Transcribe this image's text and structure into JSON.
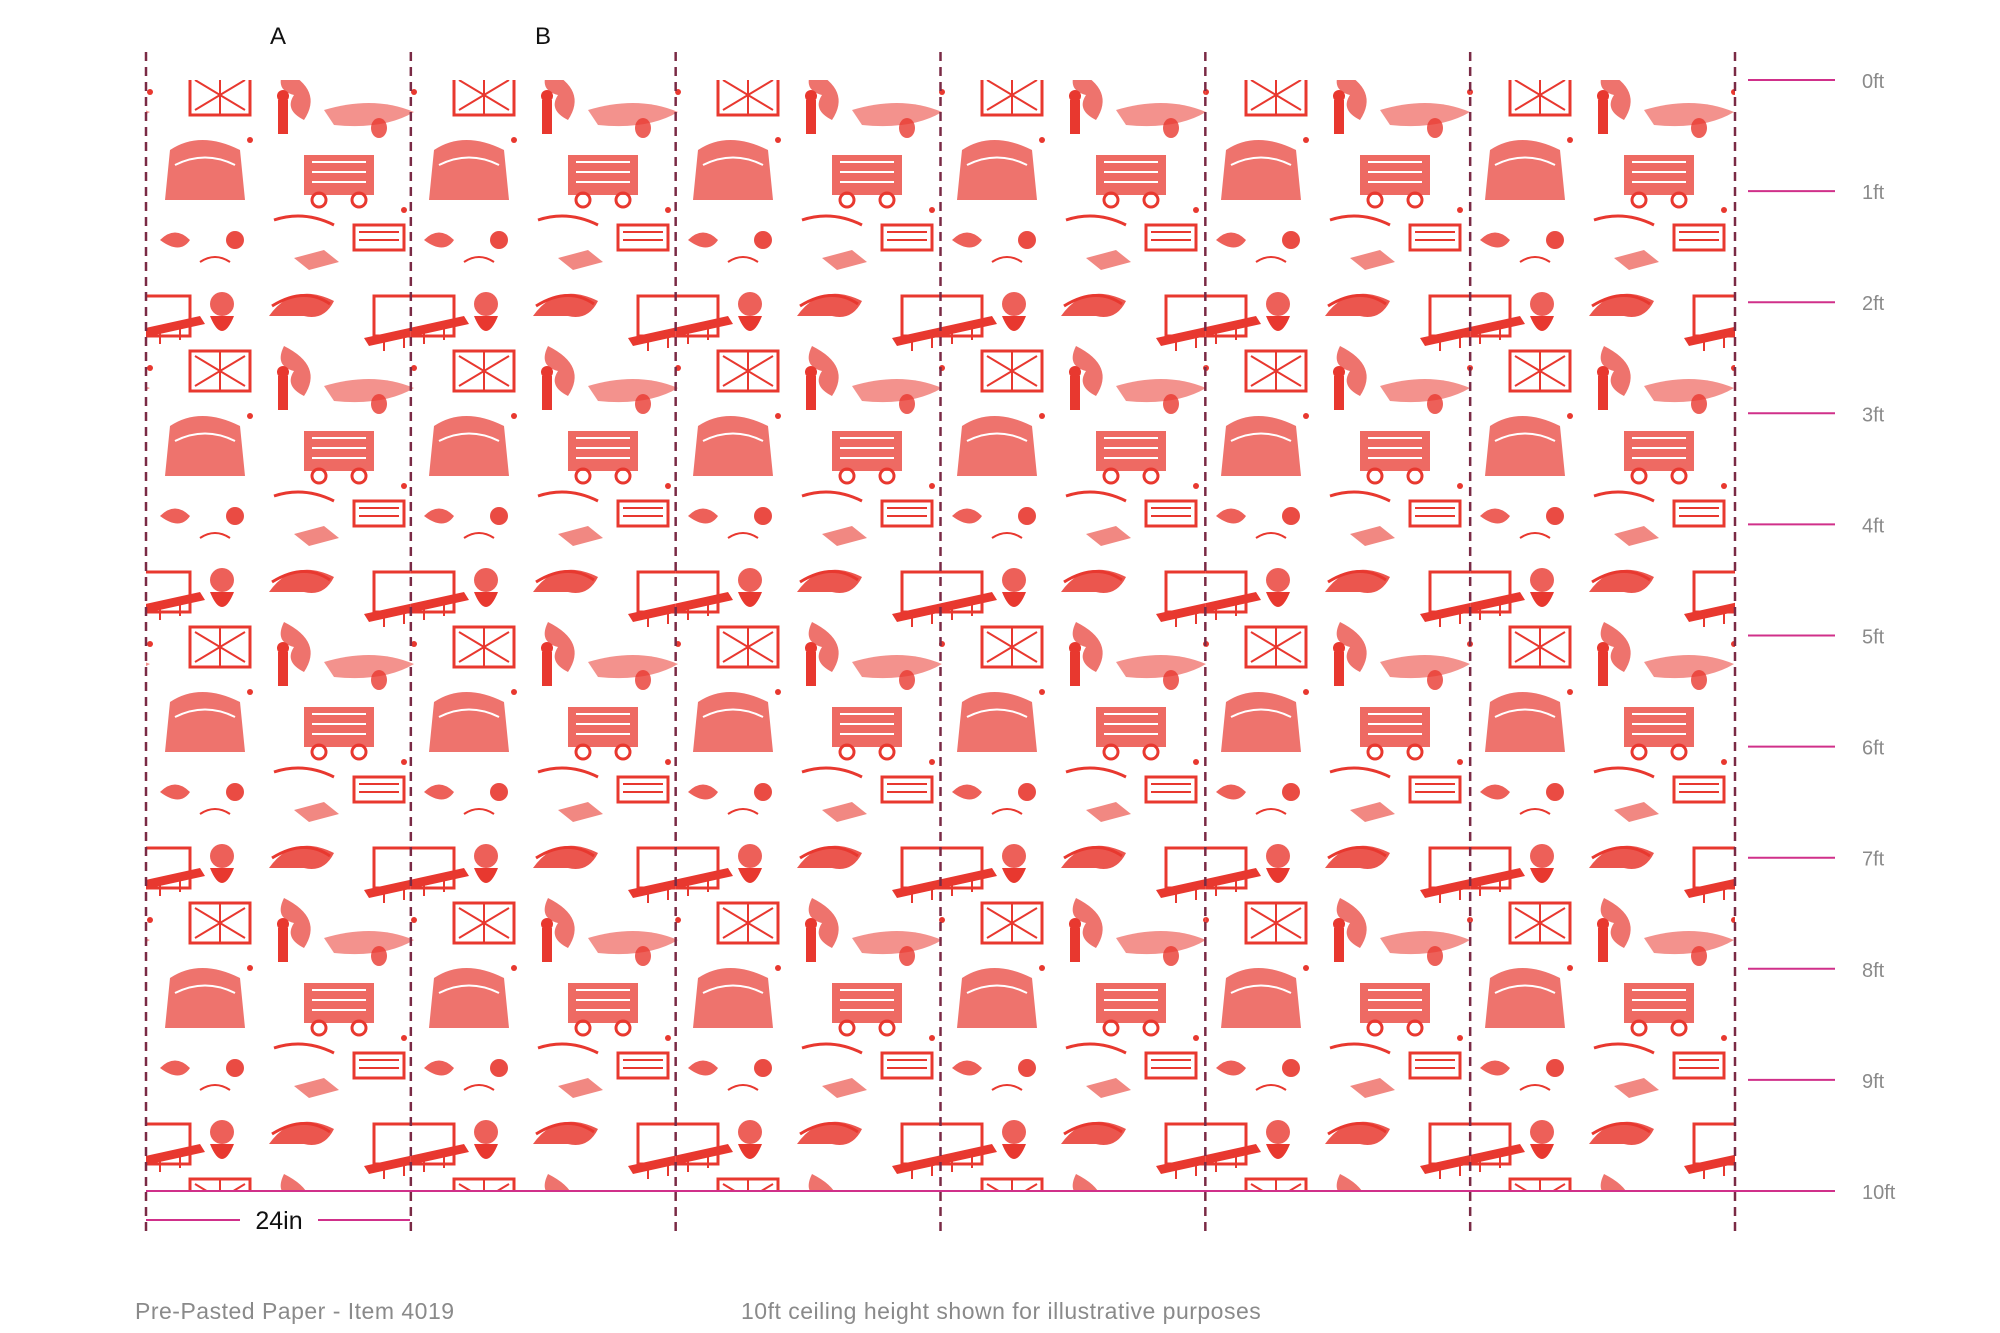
{
  "diagram": {
    "panel_labels": [
      "A",
      "B"
    ],
    "width_label": "24in",
    "height_ticks": [
      "0ft",
      "1ft",
      "2ft",
      "3ft",
      "4ft",
      "5ft",
      "6ft",
      "7ft",
      "8ft",
      "9ft",
      "10ft"
    ],
    "panel_count": 6,
    "colors": {
      "divider": "#7a2a45",
      "measure": "#d0308a",
      "pattern_main": "#e8382f",
      "pattern_faded": "#f0826a",
      "tick_text": "#8a8a8a"
    }
  },
  "footer": {
    "left": "Pre-Pasted Paper - Item 4019",
    "right": "10ft ceiling height shown for illustrative purposes"
  }
}
